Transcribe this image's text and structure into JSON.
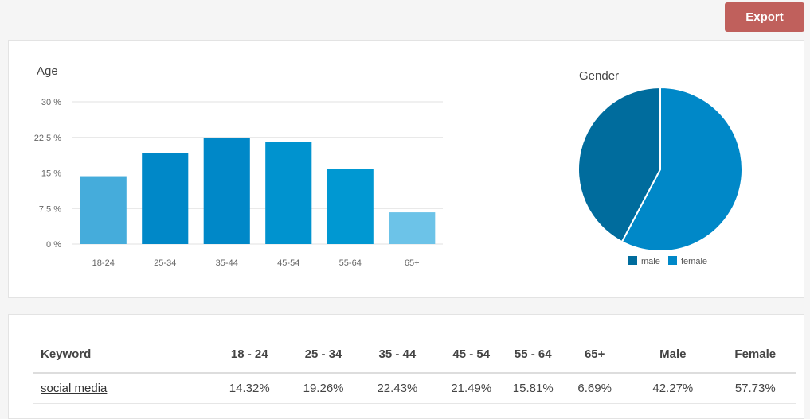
{
  "toolbar": {
    "export_label": "Export"
  },
  "colors": {
    "bar": [
      "#45acdb",
      "#0088c8",
      "#0088c8",
      "#0093cf",
      "#0098d2",
      "#6cc3e8"
    ],
    "male": "#006c9d",
    "female": "#0088c8",
    "export": "#c0605c"
  },
  "chart_data": [
    {
      "type": "bar",
      "title": "Age",
      "categories": [
        "18-24",
        "25-34",
        "35-44",
        "45-54",
        "55-64",
        "65+"
      ],
      "values": [
        14.32,
        19.26,
        22.43,
        21.49,
        15.81,
        6.69
      ],
      "ylim": [
        0,
        30
      ],
      "yticks": [
        "30 %",
        "22.5 %",
        "15 %",
        "7.5 %",
        "0 %"
      ],
      "ytick_values": [
        30,
        22.5,
        15,
        7.5,
        0
      ],
      "grid": true
    },
    {
      "type": "pie",
      "title": "Gender",
      "labels": [
        "male",
        "female"
      ],
      "values": [
        42.27,
        57.73
      ],
      "legend": "bottom"
    }
  ],
  "table": {
    "headers": [
      "Keyword",
      "18 - 24",
      "25 - 34",
      "35 - 44",
      "45 - 54",
      "55 - 64",
      "65+",
      "Male",
      "Female"
    ],
    "rows": [
      [
        "social media",
        "14.32%",
        "19.26%",
        "22.43%",
        "21.49%",
        "15.81%",
        "6.69%",
        "42.27%",
        "57.73%"
      ]
    ]
  }
}
